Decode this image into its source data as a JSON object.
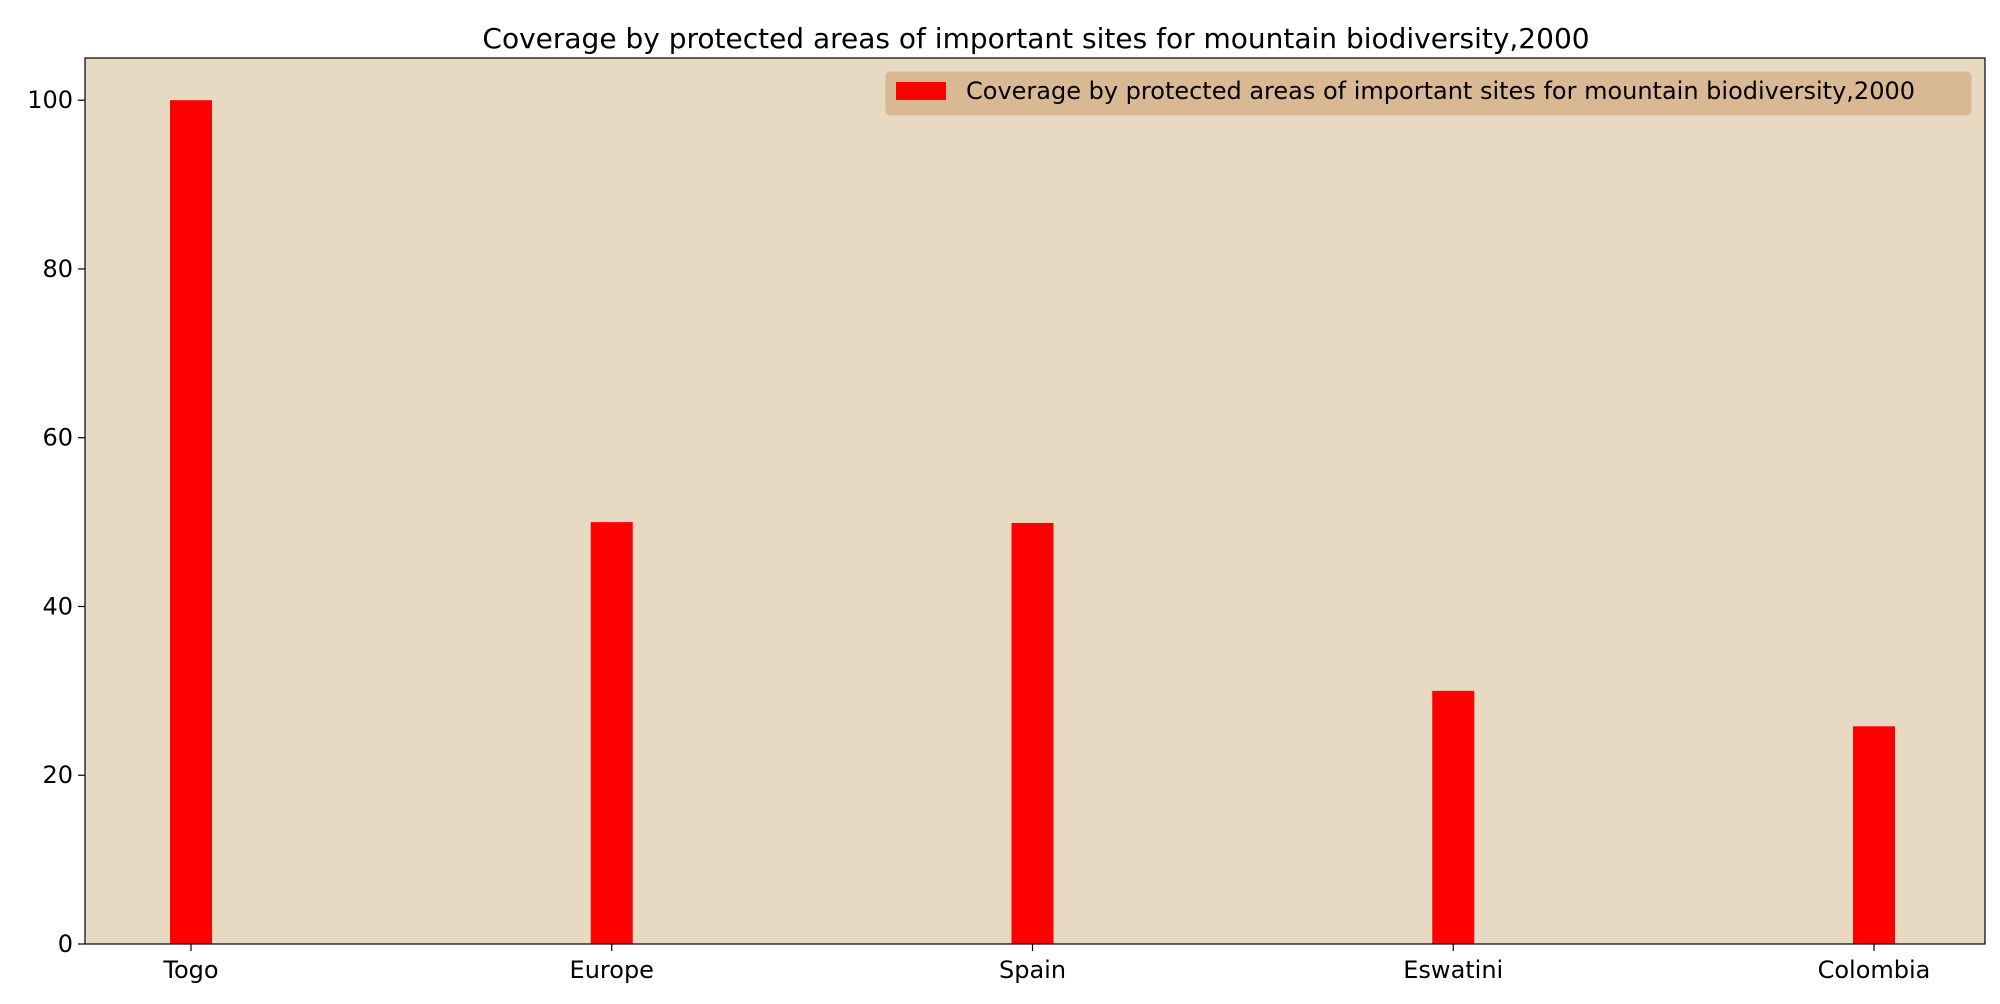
{
  "chart_data": {
    "type": "bar",
    "title": "Coverage by protected areas of important sites for mountain biodiversity,2000",
    "xlabel": "",
    "ylabel": "",
    "categories": [
      "Togo",
      "Europe",
      "Spain",
      "Eswatini",
      "Colombia"
    ],
    "series": [
      {
        "name": "Coverage by protected areas of important sites for mountain biodiversity,2000",
        "values": [
          100,
          50,
          49.9,
          30,
          25.8
        ]
      }
    ],
    "ylim": [
      0,
      105
    ],
    "yticks": [
      0,
      20,
      40,
      60,
      80,
      100
    ],
    "grid": false,
    "legend_position": "top-right"
  },
  "colors": {
    "bar": "#ff0000",
    "plot_background": "#e8d9c3",
    "legend_background": "#d8b993",
    "axis": "#000000"
  }
}
